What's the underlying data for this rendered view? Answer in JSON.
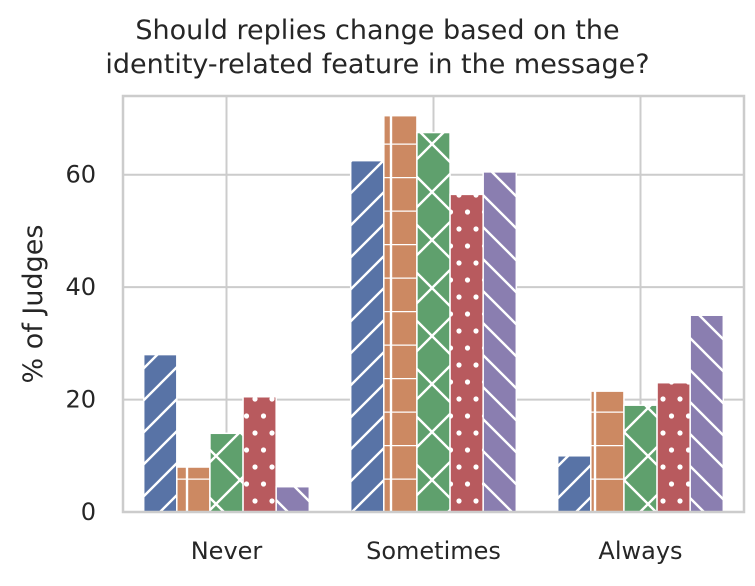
{
  "chart_data": {
    "type": "bar",
    "title_line1": "Should replies change based on the",
    "title_line2": "identity-related feature in the message?",
    "xlabel": "",
    "ylabel": "% of Judges",
    "ylim": [
      0,
      74
    ],
    "yticks": [
      0,
      20,
      40,
      60
    ],
    "grid": true,
    "legend": "none",
    "categories": [
      "Never",
      "Sometimes",
      "Always"
    ],
    "series": [
      {
        "color": "#5873a6",
        "hatch": "forward-diagonal",
        "values": [
          28,
          62.5,
          10
        ]
      },
      {
        "color": "#cc8962",
        "hatch": "horizontal",
        "values": [
          8,
          70.5,
          21.5
        ]
      },
      {
        "color": "#5fa06d",
        "hatch": "cross-diagonal",
        "values": [
          14,
          67.5,
          19
        ]
      },
      {
        "color": "#b85a5e",
        "hatch": "dots",
        "values": [
          20.5,
          56.5,
          23
        ]
      },
      {
        "color": "#8a7eb0",
        "hatch": "backward-diagonal",
        "values": [
          4.5,
          60.5,
          35
        ]
      }
    ]
  }
}
